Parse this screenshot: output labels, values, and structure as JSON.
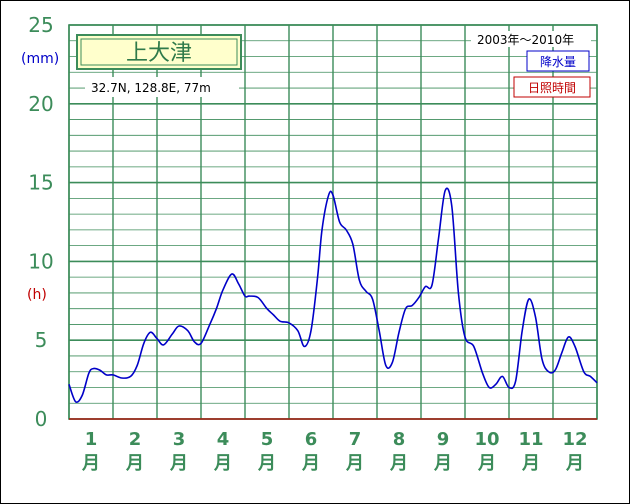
{
  "colors": {
    "grid": "#3c8c5a",
    "axis_text": "#3c8c5a",
    "precip_line": "#0000c8",
    "sunshine": "#c00000",
    "title_bg": "#ffffcc",
    "title_border": "#3c8c5a"
  },
  "station": {
    "name": "上大津",
    "location": "32.7N, 128.8E, 77m"
  },
  "legend": {
    "period": "2003年〜2010年",
    "precip": "降水量",
    "sunshine": "日照時間"
  },
  "chart_data": {
    "type": "line",
    "title": "上大津",
    "ylabel_precip": "(mm)",
    "ylabel_sunshine": "(h)",
    "ylim": [
      0,
      25
    ],
    "yticks": [
      0,
      5,
      10,
      15,
      20,
      25
    ],
    "xlim": [
      0,
      12
    ],
    "month_labels": [
      {
        "num": "1",
        "unit": "月"
      },
      {
        "num": "2",
        "unit": "月"
      },
      {
        "num": "3",
        "unit": "月"
      },
      {
        "num": "4",
        "unit": "月"
      },
      {
        "num": "5",
        "unit": "月"
      },
      {
        "num": "6",
        "unit": "月"
      },
      {
        "num": "7",
        "unit": "月"
      },
      {
        "num": "8",
        "unit": "月"
      },
      {
        "num": "9",
        "unit": "月"
      },
      {
        "num": "10",
        "unit": "月"
      },
      {
        "num": "11",
        "unit": "月"
      },
      {
        "num": "12",
        "unit": "月"
      }
    ],
    "series": [
      {
        "name": "降水量",
        "x": [
          0.0,
          0.15,
          0.3,
          0.45,
          0.55,
          0.7,
          0.85,
          1.0,
          1.2,
          1.4,
          1.55,
          1.7,
          1.85,
          2.0,
          2.15,
          2.35,
          2.5,
          2.7,
          2.85,
          3.0,
          3.2,
          3.35,
          3.5,
          3.7,
          3.85,
          4.0,
          4.1,
          4.3,
          4.5,
          4.65,
          4.8,
          5.0,
          5.2,
          5.35,
          5.5,
          5.65,
          5.75,
          5.9,
          6.0,
          6.15,
          6.3,
          6.45,
          6.6,
          6.75,
          6.9,
          7.05,
          7.2,
          7.35,
          7.5,
          7.65,
          7.8,
          7.95,
          8.1,
          8.25,
          8.4,
          8.55,
          8.7,
          8.85,
          9.0,
          9.2,
          9.4,
          9.55,
          9.7,
          9.85,
          10.0,
          10.15,
          10.3,
          10.45,
          10.6,
          10.75,
          10.9,
          11.05,
          11.2,
          11.35,
          11.5,
          11.7,
          11.85,
          12.0
        ],
        "values": [
          2.2,
          1.1,
          1.5,
          2.9,
          3.2,
          3.1,
          2.8,
          2.8,
          2.6,
          2.7,
          3.4,
          4.8,
          5.5,
          5.1,
          4.7,
          5.4,
          5.9,
          5.6,
          4.9,
          4.8,
          6.0,
          7.0,
          8.2,
          9.2,
          8.6,
          7.8,
          7.8,
          7.7,
          7.0,
          6.6,
          6.2,
          6.1,
          5.6,
          4.6,
          5.6,
          9.0,
          12.0,
          14.2,
          14.2,
          12.5,
          12.0,
          11.1,
          8.8,
          8.1,
          7.6,
          5.6,
          3.4,
          3.6,
          5.5,
          7.0,
          7.2,
          7.7,
          8.4,
          8.5,
          11.5,
          14.5,
          13.5,
          8.0,
          5.2,
          4.6,
          2.9,
          2.0,
          2.2,
          2.7,
          2.0,
          2.4,
          5.6,
          7.6,
          6.5,
          3.8,
          3.0,
          3.1,
          4.2,
          5.2,
          4.6,
          3.0,
          2.7,
          2.3
        ]
      },
      {
        "name": "日照時間",
        "x": [
          0,
          12
        ],
        "values": [
          0.0,
          0.0
        ]
      }
    ]
  }
}
